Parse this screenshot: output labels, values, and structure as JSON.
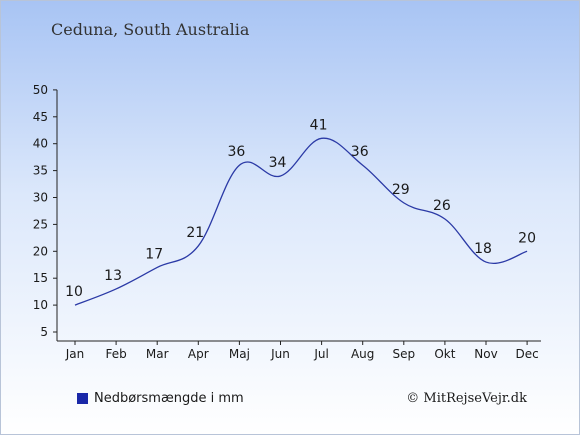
{
  "chart_data": {
    "type": "line",
    "title": "Ceduna, South Australia",
    "categories": [
      "Jan",
      "Feb",
      "Mar",
      "Apr",
      "Maj",
      "Jun",
      "Jul",
      "Aug",
      "Sep",
      "Okt",
      "Nov",
      "Dec"
    ],
    "series": [
      {
        "name": "Nedbørsmængde i mm",
        "values": [
          10,
          13,
          17,
          21,
          36,
          34,
          41,
          36,
          29,
          26,
          18,
          20
        ],
        "color": "#2b3aa6"
      }
    ],
    "yticks": [
      5,
      10,
      15,
      20,
      25,
      30,
      35,
      40,
      45,
      50
    ],
    "ylim": [
      5,
      50
    ],
    "xlabel": "",
    "ylabel": "",
    "grid": false,
    "legend_position": "bottom-left",
    "legend_swatch_color": "#1a28a8"
  },
  "credit": "© MitRejseVejr.dk"
}
